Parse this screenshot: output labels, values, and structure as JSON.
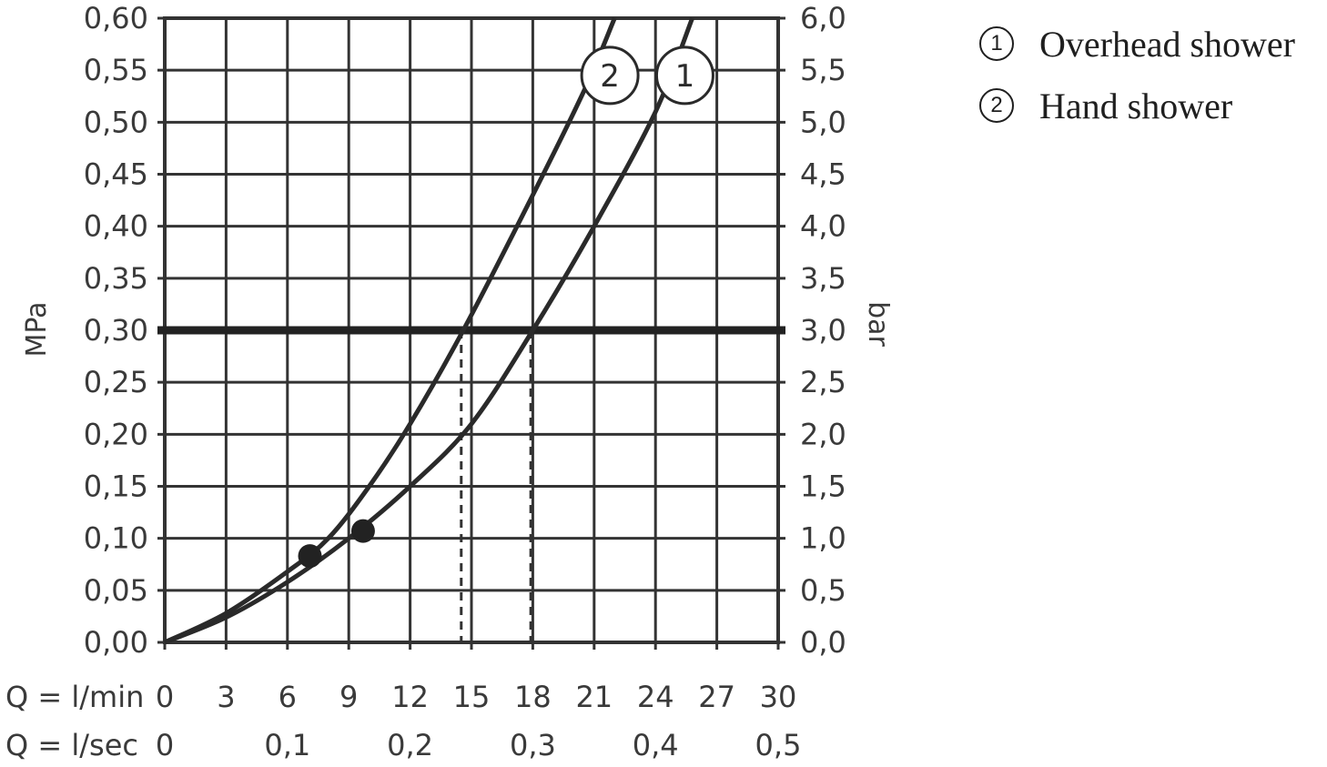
{
  "chart_data": {
    "type": "line",
    "x_axis": {
      "primary_label": "Q = l/min",
      "primary_ticks": [
        "0",
        "3",
        "6",
        "9",
        "12",
        "15",
        "18",
        "21",
        "24",
        "27",
        "30"
      ],
      "secondary_label": "Q = l/sec",
      "secondary_ticks": [
        {
          "x": 0,
          "label": "0"
        },
        {
          "x": 6,
          "label": "0,1"
        },
        {
          "x": 12,
          "label": "0,2"
        },
        {
          "x": 18,
          "label": "0,3"
        },
        {
          "x": 24,
          "label": "0,4"
        },
        {
          "x": 30,
          "label": "0,5"
        }
      ],
      "xlim": [
        0,
        30
      ]
    },
    "y_axis_left": {
      "label": "MPa",
      "ticks": [
        "0,00",
        "0,05",
        "0,10",
        "0,15",
        "0,20",
        "0,25",
        "0,30",
        "0,35",
        "0,40",
        "0,45",
        "0,50",
        "0,55",
        "0,60"
      ],
      "ylim": [
        0,
        0.6
      ]
    },
    "y_axis_right": {
      "label": "bar",
      "ticks": [
        "0,0",
        "0,5",
        "1,0",
        "1,5",
        "2,0",
        "2,5",
        "3,0",
        "3,5",
        "4,0",
        "4,5",
        "5,0",
        "5,5",
        "6,0"
      ],
      "ylim": [
        0,
        6
      ]
    },
    "grid": true,
    "reference_line": {
      "y": 0.3
    },
    "series": [
      {
        "name": "Overhead shower",
        "marker": "1",
        "points": [
          [
            0,
            0
          ],
          [
            3,
            0.024
          ],
          [
            6,
            0.058
          ],
          [
            9,
            0.1
          ],
          [
            12,
            0.15
          ],
          [
            15,
            0.21
          ],
          [
            18,
            0.3
          ],
          [
            21,
            0.4
          ],
          [
            24,
            0.51
          ],
          [
            25.8,
            0.6
          ]
        ],
        "dot": [
          9.7,
          0.107
        ],
        "flow_at_reference": 17.9
      },
      {
        "name": "Hand shower",
        "marker": "2",
        "points": [
          [
            0,
            0
          ],
          [
            3,
            0.028
          ],
          [
            6,
            0.068
          ],
          [
            8,
            0.1
          ],
          [
            10,
            0.15
          ],
          [
            12,
            0.21
          ],
          [
            14.6,
            0.3
          ],
          [
            18,
            0.43
          ],
          [
            20.5,
            0.53
          ],
          [
            22,
            0.6
          ]
        ],
        "dot": [
          7.1,
          0.083
        ],
        "flow_at_reference": 14.5
      }
    ]
  },
  "legend": {
    "items": [
      {
        "num": "1",
        "label": "Overhead shower"
      },
      {
        "num": "2",
        "label": "Hand shower"
      }
    ]
  }
}
